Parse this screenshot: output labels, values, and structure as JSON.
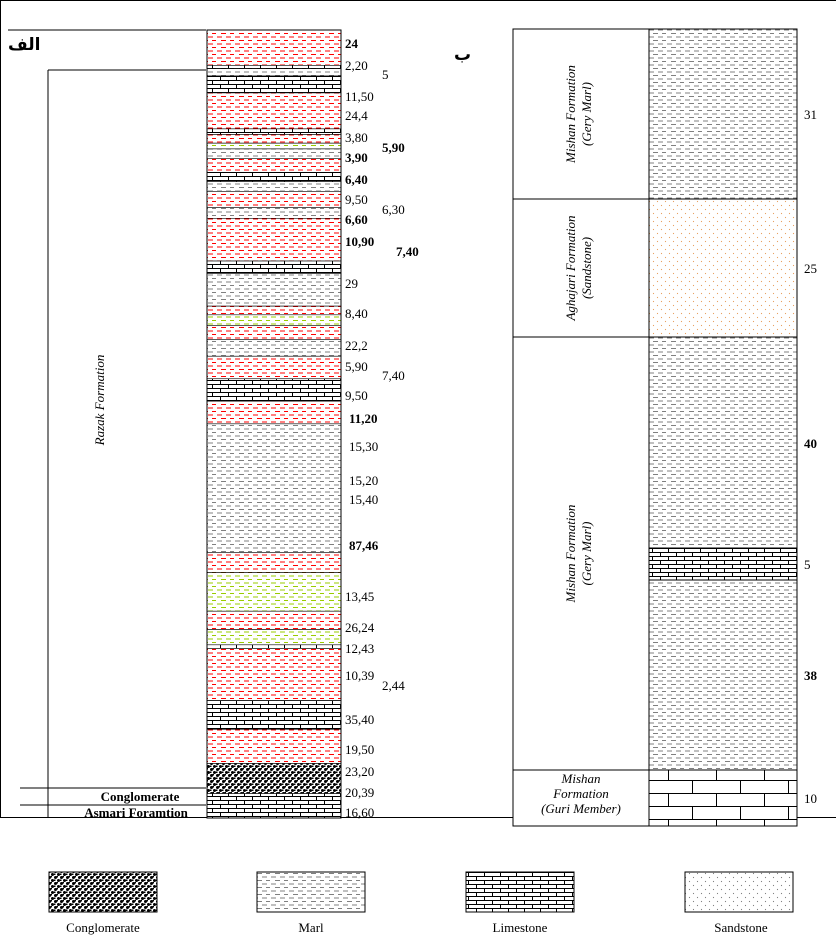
{
  "panel_labels": {
    "a": "الف",
    "b": "ب"
  },
  "colors": {
    "marl_dash_a": "#ff0000",
    "marl_dash_b": "#99cc00",
    "marl_dash_c": "#808080",
    "sandstone_dot": "#e8a060",
    "line": "#000000"
  },
  "column_a": {
    "formations": [
      {
        "id": "razak",
        "label": "Razak Formation"
      },
      {
        "id": "conglomerate",
        "label": "Conglomerate"
      },
      {
        "id": "asmari",
        "label": "Asmari Foramtion"
      }
    ],
    "layers": [
      {
        "thickness": 24,
        "lithology": "marl",
        "color": "red"
      },
      {
        "thickness": 2.2,
        "lithology": "limestone"
      },
      {
        "thickness": 5,
        "lithology": "marl",
        "color": "gray"
      },
      {
        "thickness": 11.5,
        "lithology": "limestone"
      },
      {
        "thickness": 24.4,
        "lithology": "marl",
        "color": "red"
      },
      {
        "thickness": 3.8,
        "lithology": "limestone"
      },
      {
        "thickness": 5.9,
        "lithology": "marl",
        "color": "red"
      },
      {
        "thickness": 3.9,
        "lithology": "marl",
        "color": "green"
      },
      {
        "thickness": 6.4,
        "lithology": "marl",
        "color": "gray"
      },
      {
        "thickness": 9.5,
        "lithology": "marl",
        "color": "red"
      },
      {
        "thickness": 6.3,
        "lithology": "limestone"
      },
      {
        "thickness": 6.6,
        "lithology": "marl",
        "color": "gray"
      },
      {
        "thickness": 10.9,
        "lithology": "marl",
        "color": "red"
      },
      {
        "thickness": 7.4,
        "lithology": "marl",
        "color": "gray"
      },
      {
        "thickness": 29,
        "lithology": "marl",
        "color": "red"
      },
      {
        "thickness": 8.4,
        "lithology": "limestone"
      },
      {
        "thickness": 22.2,
        "lithology": "marl",
        "color": "gray"
      },
      {
        "thickness": 5.9,
        "lithology": "marl",
        "color": "red"
      },
      {
        "thickness": 7.4,
        "lithology": "marl",
        "color": "green"
      },
      {
        "thickness": 9.5,
        "lithology": "marl",
        "color": "red"
      },
      {
        "thickness": 11.2,
        "lithology": "marl",
        "color": "gray"
      },
      {
        "thickness": 15.3,
        "lithology": "marl",
        "color": "red"
      },
      {
        "thickness": 15.2,
        "lithology": "limestone"
      },
      {
        "thickness": 15.4,
        "lithology": "marl",
        "color": "red"
      },
      {
        "thickness": 87.46,
        "lithology": "marl",
        "color": "gray"
      },
      {
        "thickness": 13.45,
        "lithology": "marl",
        "color": "red"
      },
      {
        "thickness": 26.24,
        "lithology": "marl",
        "color": "green"
      },
      {
        "thickness": 12.43,
        "lithology": "marl",
        "color": "red"
      },
      {
        "thickness": 10.39,
        "lithology": "marl",
        "color": "green"
      },
      {
        "thickness": 2.44,
        "lithology": "limestone"
      },
      {
        "thickness": 35.4,
        "lithology": "marl",
        "color": "red"
      },
      {
        "thickness": 19.5,
        "lithology": "limestone"
      },
      {
        "thickness": 23.2,
        "lithology": "marl",
        "color": "red"
      },
      {
        "thickness": 20.39,
        "lithology": "conglomerate"
      },
      {
        "thickness": 16.6,
        "lithology": "limestone"
      }
    ],
    "thickness_labels": [
      {
        "text": "24",
        "bold": true
      },
      {
        "text": "2,20",
        "bold": false
      },
      {
        "text": "5",
        "bold": false
      },
      {
        "text": "11,50",
        "bold": false
      },
      {
        "text": "24,4",
        "bold": false
      },
      {
        "text": "3,80",
        "bold": false
      },
      {
        "text": "5,90",
        "bold": true
      },
      {
        "text": "3,90",
        "bold": true
      },
      {
        "text": "6,40",
        "bold": true
      },
      {
        "text": "9,50",
        "bold": false
      },
      {
        "text": "6,30",
        "bold": false
      },
      {
        "text": "6,60",
        "bold": true
      },
      {
        "text": "10,90",
        "bold": true
      },
      {
        "text": "7,40",
        "bold": true
      },
      {
        "text": "29",
        "bold": false
      },
      {
        "text": "8,40",
        "bold": false
      },
      {
        "text": "22,2",
        "bold": false
      },
      {
        "text": "5,90",
        "bold": false
      },
      {
        "text": "7,40",
        "bold": false
      },
      {
        "text": "9,50",
        "bold": false
      },
      {
        "text": "11,20",
        "bold": true
      },
      {
        "text": "15,30",
        "bold": false
      },
      {
        "text": "15,20",
        "bold": false
      },
      {
        "text": "15,40",
        "bold": false
      },
      {
        "text": "87,46",
        "bold": true
      },
      {
        "text": "13,45",
        "bold": false
      },
      {
        "text": "26,24",
        "bold": false
      },
      {
        "text": "12,43",
        "bold": false
      },
      {
        "text": "10,39",
        "bold": false
      },
      {
        "text": "2,44",
        "bold": false
      },
      {
        "text": "35,40",
        "bold": false
      },
      {
        "text": "19,50",
        "bold": false
      },
      {
        "text": "23,20",
        "bold": false
      },
      {
        "text": "20,39",
        "bold": false
      },
      {
        "text": "16,60",
        "bold": false
      }
    ]
  },
  "column_b": {
    "units": [
      {
        "name": "Mishan Formation",
        "sub": "(Gery Marl)",
        "lithology": "marl",
        "thickness_label": "31",
        "bold": false
      },
      {
        "name": "Aghajari Formation",
        "sub": "(Sandstone)",
        "lithology": "sandstone",
        "thickness_label": "25",
        "bold": false
      },
      {
        "name": "Mishan Formation",
        "sub": "(Gery Marl)",
        "lithology": "marl",
        "thickness_label": "40",
        "bold": true
      },
      {
        "name": "",
        "sub": "",
        "lithology": "limestone",
        "thickness_label": "5",
        "bold": false
      },
      {
        "name": "",
        "sub": "",
        "lithology": "marl",
        "thickness_label": "38",
        "bold": true
      },
      {
        "name": "Mishan Formation (Guri Member)",
        "name_lines": [
          "Mishan",
          "Formation",
          "(Guri Member)"
        ],
        "sub": "",
        "lithology": "blocky_limestone",
        "thickness_label": "10",
        "bold": false
      }
    ]
  },
  "legend": [
    {
      "key": "conglomerate",
      "label": "Conglomerate"
    },
    {
      "key": "marl",
      "label": "Marl"
    },
    {
      "key": "limestone",
      "label": "Limestone"
    },
    {
      "key": "sandstone",
      "label": "Sandstone"
    }
  ]
}
